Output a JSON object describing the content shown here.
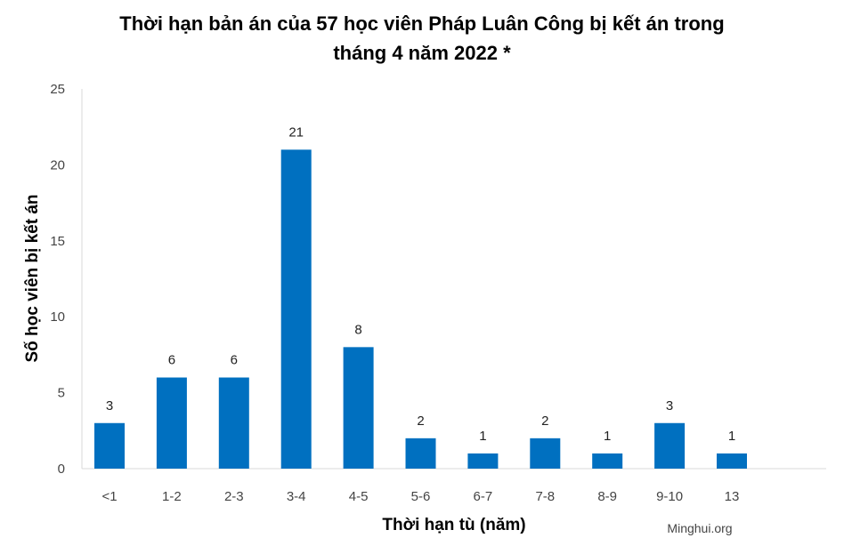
{
  "chart_data": {
    "type": "bar",
    "title_line1": "Thời hạn bản án của 57 học viên Pháp Luân Công bị kết án trong",
    "title_line2": "tháng 4 năm 2022 *",
    "xlabel": "Thời hạn tù (năm)",
    "ylabel": "Số học viên bị kết án",
    "categories": [
      "<1",
      "1-2",
      "2-3",
      "3-4",
      "4-5",
      "5-6",
      "6-7",
      "7-8",
      "8-9",
      "9-10",
      "13"
    ],
    "values": [
      3,
      6,
      6,
      21,
      8,
      2,
      1,
      2,
      1,
      3,
      1
    ],
    "ylim": [
      0,
      25
    ],
    "yticks": [
      0,
      5,
      10,
      15,
      20,
      25
    ],
    "grid": false,
    "bar_color": "#0070C0",
    "data_labels": true
  },
  "source_label": "Minghui.org"
}
